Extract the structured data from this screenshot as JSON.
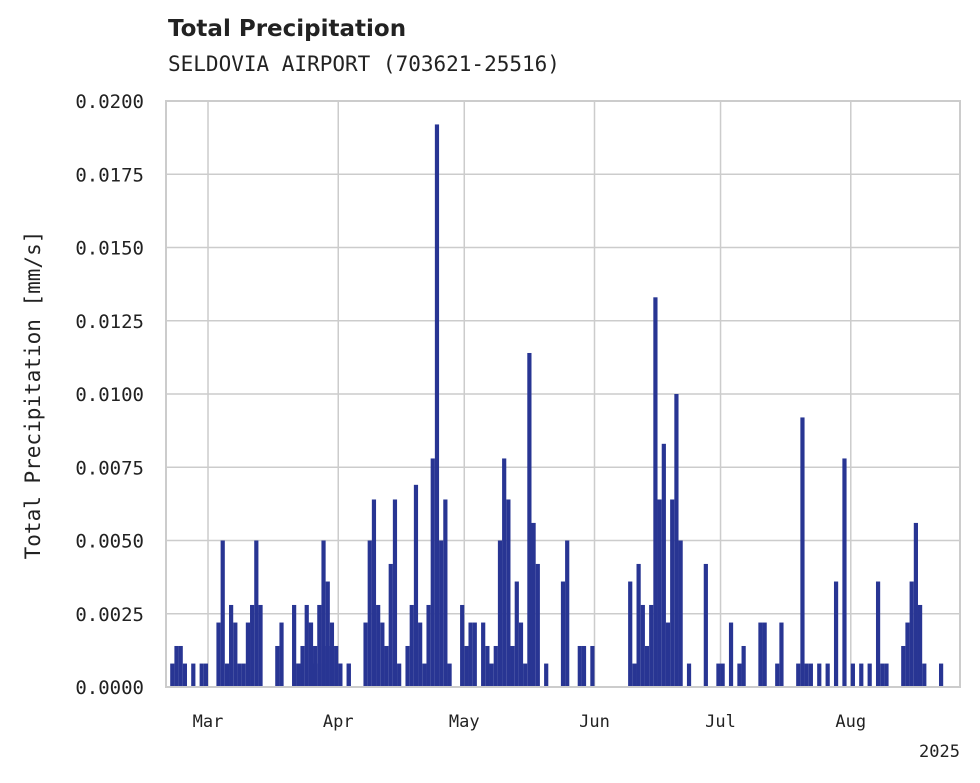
{
  "chart_data": {
    "type": "bar",
    "title": "Total Precipitation",
    "subtitle": "SELDOVIA AIRPORT (703621-25516)",
    "xlabel": "",
    "ylabel": "Total Precipitation [mm/s]",
    "ylim": [
      0,
      0.02
    ],
    "yticks": [
      "0.0000",
      "0.0025",
      "0.0050",
      "0.0075",
      "0.0100",
      "0.0125",
      "0.0150",
      "0.0175",
      "0.0200"
    ],
    "xlim": [
      "2025-02-19",
      "2025-08-27"
    ],
    "xticks": [
      {
        "date": "2025-03-01",
        "label": "Mar"
      },
      {
        "date": "2025-04-01",
        "label": "Apr"
      },
      {
        "date": "2025-05-01",
        "label": "May"
      },
      {
        "date": "2025-06-01",
        "label": "Jun"
      },
      {
        "date": "2025-07-01",
        "label": "Jul"
      },
      {
        "date": "2025-08-01",
        "label": "Aug"
      }
    ],
    "year_label": "2025",
    "grid": true,
    "color": "#283593",
    "series": [
      {
        "values": [
          [
            "2025-02-20",
            0.0008
          ],
          [
            "2025-02-21",
            0.0014
          ],
          [
            "2025-02-22",
            0.0014
          ],
          [
            "2025-02-23",
            0.0008
          ],
          [
            "2025-02-25",
            0.0008
          ],
          [
            "2025-02-27",
            0.0008
          ],
          [
            "2025-02-28",
            0.0008
          ],
          [
            "2025-03-03",
            0.0022
          ],
          [
            "2025-03-04",
            0.005
          ],
          [
            "2025-03-05",
            0.0008
          ],
          [
            "2025-03-06",
            0.0028
          ],
          [
            "2025-03-07",
            0.0022
          ],
          [
            "2025-03-08",
            0.0008
          ],
          [
            "2025-03-09",
            0.0008
          ],
          [
            "2025-03-10",
            0.0022
          ],
          [
            "2025-03-11",
            0.0028
          ],
          [
            "2025-03-12",
            0.005
          ],
          [
            "2025-03-13",
            0.0028
          ],
          [
            "2025-03-17",
            0.0014
          ],
          [
            "2025-03-18",
            0.0022
          ],
          [
            "2025-03-21",
            0.0028
          ],
          [
            "2025-03-22",
            0.0008
          ],
          [
            "2025-03-23",
            0.0014
          ],
          [
            "2025-03-24",
            0.0028
          ],
          [
            "2025-03-25",
            0.0022
          ],
          [
            "2025-03-26",
            0.0008
          ],
          [
            "2025-03-27",
            0.0028
          ],
          [
            "2025-03-28",
            0.0008
          ],
          [
            "2025-03-29",
            0.0014
          ],
          [
            "2025-03-30",
            0.0014
          ],
          [
            "2025-04-01",
            0.0008
          ],
          [
            "2025-03-28",
            0.0014
          ],
          [
            "2025-03-26",
            0.0014
          ],
          [
            "2025-04-01",
            0.0008
          ],
          [
            "2025-03-25",
            0.0022
          ],
          [
            "2025-03-22",
            0.0008
          ],
          [
            "2025-04-03",
            0.0008
          ],
          [
            "2025-03-25",
            0.0022
          ],
          [
            "2025-03-28",
            0.005
          ],
          [
            "2025-03-29",
            0.0036
          ],
          [
            "2025-03-30",
            0.0022
          ],
          [
            "2025-03-31",
            0.0014
          ]
        ]
      },
      {
        "values": [
          [
            "2025-04-03",
            0.0008
          ],
          [
            "2025-04-07",
            0.0022
          ],
          [
            "2025-04-08",
            0.005
          ],
          [
            "2025-04-09",
            0.0064
          ],
          [
            "2025-04-10",
            0.0028
          ],
          [
            "2025-04-11",
            0.0022
          ],
          [
            "2025-04-12",
            0.0014
          ],
          [
            "2025-04-13",
            0.0042
          ],
          [
            "2025-04-14",
            0.0064
          ],
          [
            "2025-04-15",
            0.0008
          ],
          [
            "2025-04-17",
            0.0014
          ],
          [
            "2025-04-18",
            0.0028
          ],
          [
            "2025-04-19",
            0.0069
          ],
          [
            "2025-04-20",
            0.0022
          ],
          [
            "2025-04-21",
            0.0008
          ],
          [
            "2025-04-22",
            0.0028
          ],
          [
            "2025-04-23",
            0.0078
          ],
          [
            "2025-04-24",
            0.0192
          ],
          [
            "2025-04-25",
            0.005
          ],
          [
            "2025-04-26",
            0.0064
          ],
          [
            "2025-04-27",
            0.0008
          ],
          [
            "2025-04-30",
            0.0028
          ],
          [
            "2025-05-01",
            0.0014
          ],
          [
            "2025-05-02",
            0.0022
          ],
          [
            "2025-05-03",
            0.0022
          ],
          [
            "2025-05-05",
            0.0022
          ],
          [
            "2025-05-06",
            0.0014
          ],
          [
            "2025-05-07",
            0.0008
          ],
          [
            "2025-05-08",
            0.0014
          ],
          [
            "2025-05-09",
            0.005
          ],
          [
            "2025-05-10",
            0.0078
          ],
          [
            "2025-05-11",
            0.0064
          ],
          [
            "2025-05-12",
            0.0014
          ],
          [
            "2025-05-13",
            0.0036
          ],
          [
            "2025-05-14",
            0.0022
          ],
          [
            "2025-05-15",
            0.0008
          ],
          [
            "2025-05-16",
            0.0114
          ],
          [
            "2025-05-17",
            0.0056
          ],
          [
            "2025-05-18",
            0.0042
          ],
          [
            "2025-05-20",
            0.0008
          ],
          [
            "2025-05-24",
            0.0036
          ],
          [
            "2025-05-25",
            0.005
          ],
          [
            "2025-05-28",
            0.0014
          ],
          [
            "2025-05-29",
            0.0014
          ],
          [
            "2025-05-31",
            0.0014
          ]
        ]
      },
      {
        "values": [
          [
            "2025-06-09",
            0.0036
          ],
          [
            "2025-06-10",
            0.0008
          ],
          [
            "2025-06-11",
            0.0042
          ],
          [
            "2025-06-12",
            0.0028
          ],
          [
            "2025-06-13",
            0.0014
          ],
          [
            "2025-06-14",
            0.0028
          ],
          [
            "2025-06-15",
            0.0133
          ],
          [
            "2025-06-16",
            0.0064
          ],
          [
            "2025-06-17",
            0.0083
          ],
          [
            "2025-06-18",
            0.0022
          ],
          [
            "2025-06-19",
            0.0064
          ],
          [
            "2025-06-20",
            0.01
          ],
          [
            "2025-06-21",
            0.005
          ],
          [
            "2025-06-23",
            0.0008
          ],
          [
            "2025-06-27",
            0.0042
          ],
          [
            "2025-06-30",
            0.0008
          ],
          [
            "2025-07-01",
            0.0008
          ],
          [
            "2025-07-03",
            0.0022
          ],
          [
            "2025-07-05",
            0.0008
          ],
          [
            "2025-07-06",
            0.0014
          ],
          [
            "2025-07-10",
            0.0022
          ],
          [
            "2025-07-11",
            0.0022
          ],
          [
            "2025-07-14",
            0.0008
          ],
          [
            "2025-07-15",
            0.0022
          ],
          [
            "2025-07-19",
            0.0008
          ],
          [
            "2025-07-20",
            0.0092
          ],
          [
            "2025-07-21",
            0.0008
          ],
          [
            "2025-07-22",
            0.0008
          ],
          [
            "2025-07-24",
            0.0008
          ],
          [
            "2025-07-26",
            0.0008
          ],
          [
            "2025-07-28",
            0.0036
          ],
          [
            "2025-07-30",
            0.0078
          ],
          [
            "2025-08-01",
            0.0008
          ],
          [
            "2025-08-03",
            0.0008
          ],
          [
            "2025-08-05",
            0.0008
          ],
          [
            "2025-08-07",
            0.0036
          ],
          [
            "2025-08-08",
            0.0008
          ],
          [
            "2025-08-09",
            0.0008
          ],
          [
            "2025-08-13",
            0.0014
          ],
          [
            "2025-08-14",
            0.0022
          ],
          [
            "2025-08-15",
            0.0036
          ],
          [
            "2025-08-16",
            0.0056
          ],
          [
            "2025-08-17",
            0.0028
          ],
          [
            "2025-08-18",
            0.0008
          ],
          [
            "2025-08-22",
            0.0008
          ]
        ]
      }
    ]
  }
}
